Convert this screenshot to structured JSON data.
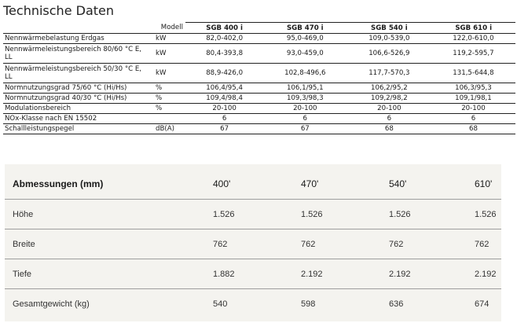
{
  "title": "Technische Daten",
  "tech": {
    "header": {
      "unit": "Modell",
      "models": [
        "SGB 400 i",
        "SGB 470 i",
        "SGB 540 i",
        "SGB 610 i"
      ]
    },
    "rows": [
      {
        "label": "Nennwärmebelastung Erdgas",
        "unit": "kW",
        "values": [
          "82,0-402,0",
          "95,0-469,0",
          "109,0-539,0",
          "122,0-610,0"
        ]
      },
      {
        "label": "Nennwärmeleistungsbereich 80/60 °C E, LL",
        "unit": "kW",
        "values": [
          "80,4-393,8",
          "93,0-459,0",
          "106,6-526,9",
          "119,2-595,7"
        ]
      },
      {
        "label": "Nennwärmeleistungsbereich 50/30 °C E, LL",
        "unit": "kW",
        "values": [
          "88,9-426,0",
          "102,8-496,6",
          "117,7-570,3",
          "131,5-644,8"
        ]
      },
      {
        "label": "Normnutzungsgrad 75/60 °C (Hi/Hs)",
        "unit": "%",
        "values": [
          "106,4/95,4",
          "106,1/95,1",
          "106,2/95,2",
          "106,3/95,3"
        ]
      },
      {
        "label": "Normnutzungsgrad 40/30 °C (Hi/Hs)",
        "unit": "%",
        "values": [
          "109,4/98,4",
          "109,3/98,3",
          "109,2/98,2",
          "109,1/98,1"
        ]
      },
      {
        "label": "Modulationsbereich",
        "unit": "%",
        "values": [
          "20-100",
          "20-100",
          "20-100",
          "20-100"
        ]
      },
      {
        "label": "NOx-Klasse nach EN 15502",
        "unit": "",
        "values": [
          "6",
          "6",
          "6",
          "6"
        ]
      },
      {
        "label": "Schallleistungspegel",
        "unit": "dB(A)",
        "values": [
          "67",
          "67",
          "68",
          "68"
        ]
      }
    ]
  },
  "dimensions": {
    "header": {
      "label": "Abmessungen (mm)",
      "models": [
        "400'",
        "470'",
        "540'",
        "610'"
      ]
    },
    "rows": [
      {
        "label": "Höhe",
        "values": [
          "1.526",
          "1.526",
          "1.526",
          "1.526"
        ]
      },
      {
        "label": "Breite",
        "values": [
          "762",
          "762",
          "762",
          "762"
        ]
      },
      {
        "label": "Tiefe",
        "values": [
          "1.882",
          "2.192",
          "2.192",
          "2.192"
        ]
      },
      {
        "label": "Gesamtgewicht (kg)",
        "values": [
          "540",
          "598",
          "636",
          "674"
        ]
      }
    ]
  }
}
